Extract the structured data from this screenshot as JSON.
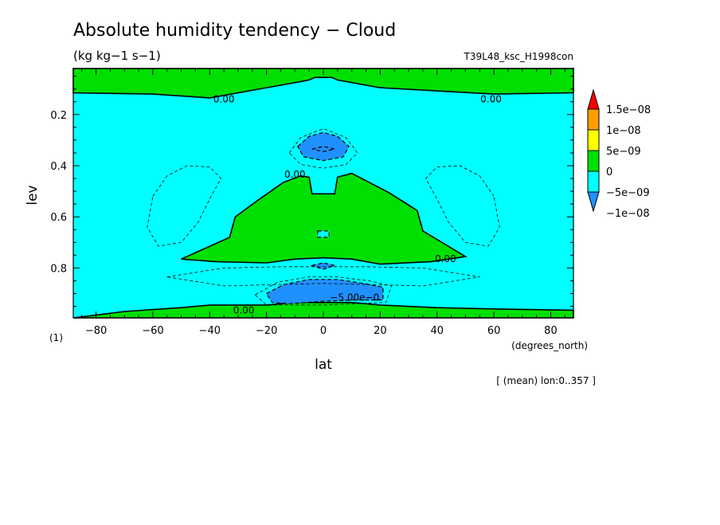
{
  "chart_data": {
    "type": "contour",
    "title": "Absolute humidity tendency − Cloud",
    "units": "(kg kg−1 s−1)",
    "experiment": "T39L48_ksc_H1998con",
    "xlabel": "lat",
    "xunits": "(degrees_north)",
    "ylabel": "lev",
    "yunits": "(1)",
    "xlim": [
      -88,
      88
    ],
    "ylim": [
      0.995,
      0.02
    ],
    "x_ticks": [
      -80,
      -60,
      -40,
      -20,
      0,
      20,
      40,
      60,
      80
    ],
    "y_ticks": [
      0.2,
      0.4,
      0.6,
      0.8
    ],
    "note": "[ (mean) lon:0..357 ]",
    "colorbar": {
      "labels": [
        "1.5e−08",
        "1e−08",
        "5e−09",
        "0",
        "−5e−09",
        "−1e−08"
      ],
      "colors": [
        "#ff0000",
        "#ffa000",
        "#ffff00",
        "#00e000",
        "#00ffff",
        "#2090ff"
      ]
    },
    "contour_labels": [
      {
        "text": "0.00",
        "lat": -35,
        "lev": 0.14
      },
      {
        "text": "0.00",
        "lat": 59,
        "lev": 0.14
      },
      {
        "text": "0.00",
        "lat": -10,
        "lev": 0.435
      },
      {
        "text": "0.00",
        "lat": 43,
        "lev": 0.765
      },
      {
        "text": "0.00",
        "lat": -28,
        "lev": 0.965
      },
      {
        "text": "−5.00e−0",
        "lat": 11,
        "lev": 0.915
      }
    ],
    "regions": [
      {
        "name": "top-positive",
        "color": "#00e000",
        "pts": [
          [
            -88,
            0.02
          ],
          [
            88,
            0.02
          ],
          [
            88,
            0.115
          ],
          [
            60,
            0.12
          ],
          [
            20,
            0.095
          ],
          [
            5,
            0.065
          ],
          [
            3,
            0.055
          ],
          [
            -3,
            0.055
          ],
          [
            -5,
            0.065
          ],
          [
            -20,
            0.095
          ],
          [
            -40,
            0.135
          ],
          [
            -60,
            0.12
          ],
          [
            -88,
            0.115
          ]
        ]
      },
      {
        "name": "mid-positive",
        "color": "#00e000",
        "pts": [
          [
            -50,
            0.765
          ],
          [
            -33,
            0.68
          ],
          [
            -31,
            0.6
          ],
          [
            -23,
            0.535
          ],
          [
            -14,
            0.465
          ],
          [
            -8,
            0.44
          ],
          [
            -5,
            0.445
          ],
          [
            -4,
            0.51
          ],
          [
            4,
            0.51
          ],
          [
            5,
            0.445
          ],
          [
            10,
            0.43
          ],
          [
            23,
            0.505
          ],
          [
            33,
            0.575
          ],
          [
            35,
            0.655
          ],
          [
            50,
            0.755
          ],
          [
            38,
            0.775
          ],
          [
            20,
            0.785
          ],
          [
            10,
            0.765
          ],
          [
            0,
            0.76
          ],
          [
            -10,
            0.765
          ],
          [
            -20,
            0.78
          ],
          [
            -38,
            0.775
          ]
        ]
      },
      {
        "name": "bottom-positive",
        "color": "#00e000",
        "pts": [
          [
            -88,
            0.995
          ],
          [
            -70,
            0.97
          ],
          [
            -50,
            0.955
          ],
          [
            -40,
            0.945
          ],
          [
            -20,
            0.945
          ],
          [
            -10,
            0.935
          ],
          [
            10,
            0.935
          ],
          [
            20,
            0.945
          ],
          [
            40,
            0.955
          ],
          [
            60,
            0.96
          ],
          [
            88,
            0.965
          ],
          [
            88,
            0.995
          ]
        ]
      },
      {
        "name": "upper-negative",
        "color": "#2090ff",
        "pts": [
          [
            -9,
            0.325
          ],
          [
            -5,
            0.285
          ],
          [
            0,
            0.27
          ],
          [
            5,
            0.285
          ],
          [
            9,
            0.325
          ],
          [
            7,
            0.365
          ],
          [
            0,
            0.38
          ],
          [
            -7,
            0.365
          ]
        ]
      },
      {
        "name": "upper-negative-core",
        "color": "#2090ff",
        "pts": [
          [
            -4,
            0.335
          ],
          [
            0,
            0.325
          ],
          [
            4,
            0.335
          ],
          [
            0,
            0.345
          ]
        ]
      },
      {
        "name": "lower-negative",
        "color": "#2090ff",
        "pts": [
          [
            -20,
            0.9
          ],
          [
            -14,
            0.865
          ],
          [
            -5,
            0.845
          ],
          [
            5,
            0.845
          ],
          [
            14,
            0.86
          ],
          [
            21,
            0.875
          ],
          [
            21,
            0.925
          ],
          [
            12,
            0.925
          ],
          [
            0,
            0.93
          ],
          [
            -12,
            0.94
          ],
          [
            -18,
            0.935
          ]
        ]
      },
      {
        "name": "mid-negative-small",
        "color": "#2090ff",
        "pts": [
          [
            -4,
            0.79
          ],
          [
            0,
            0.78
          ],
          [
            4,
            0.79
          ],
          [
            0,
            0.805
          ]
        ]
      },
      {
        "name": "hole-cyan",
        "color": "#00ffff",
        "pts": [
          [
            -2,
            0.655
          ],
          [
            2,
            0.655
          ],
          [
            2,
            0.68
          ],
          [
            -2,
            0.68
          ]
        ]
      }
    ],
    "dashed_contours": [
      [
        [
          -60,
          0.52
        ],
        [
          -55,
          0.44
        ],
        [
          -48,
          0.4
        ],
        [
          -40,
          0.405
        ],
        [
          -36,
          0.45
        ],
        [
          -40,
          0.53
        ],
        [
          -44,
          0.62
        ],
        [
          -50,
          0.7
        ],
        [
          -58,
          0.715
        ],
        [
          -62,
          0.64
        ]
      ],
      [
        [
          60,
          0.52
        ],
        [
          55,
          0.44
        ],
        [
          48,
          0.4
        ],
        [
          40,
          0.405
        ],
        [
          36,
          0.45
        ],
        [
          40,
          0.53
        ],
        [
          44,
          0.62
        ],
        [
          50,
          0.7
        ],
        [
          58,
          0.715
        ],
        [
          62,
          0.64
        ]
      ],
      [
        [
          -12,
          0.35
        ],
        [
          -8,
          0.29
        ],
        [
          0,
          0.255
        ],
        [
          8,
          0.29
        ],
        [
          12,
          0.35
        ],
        [
          8,
          0.395
        ],
        [
          0,
          0.41
        ],
        [
          -8,
          0.395
        ]
      ],
      [
        [
          -55,
          0.835
        ],
        [
          -35,
          0.8
        ],
        [
          -15,
          0.795
        ],
        [
          0,
          0.795
        ],
        [
          15,
          0.795
        ],
        [
          35,
          0.8
        ],
        [
          55,
          0.835
        ],
        [
          35,
          0.87
        ],
        [
          0,
          0.86
        ],
        [
          -35,
          0.87
        ]
      ],
      [
        [
          -24,
          0.905
        ],
        [
          -16,
          0.855
        ],
        [
          -5,
          0.835
        ],
        [
          5,
          0.835
        ],
        [
          16,
          0.85
        ],
        [
          24,
          0.87
        ],
        [
          22,
          0.935
        ],
        [
          0,
          0.945
        ],
        [
          -20,
          0.945
        ]
      ]
    ]
  }
}
